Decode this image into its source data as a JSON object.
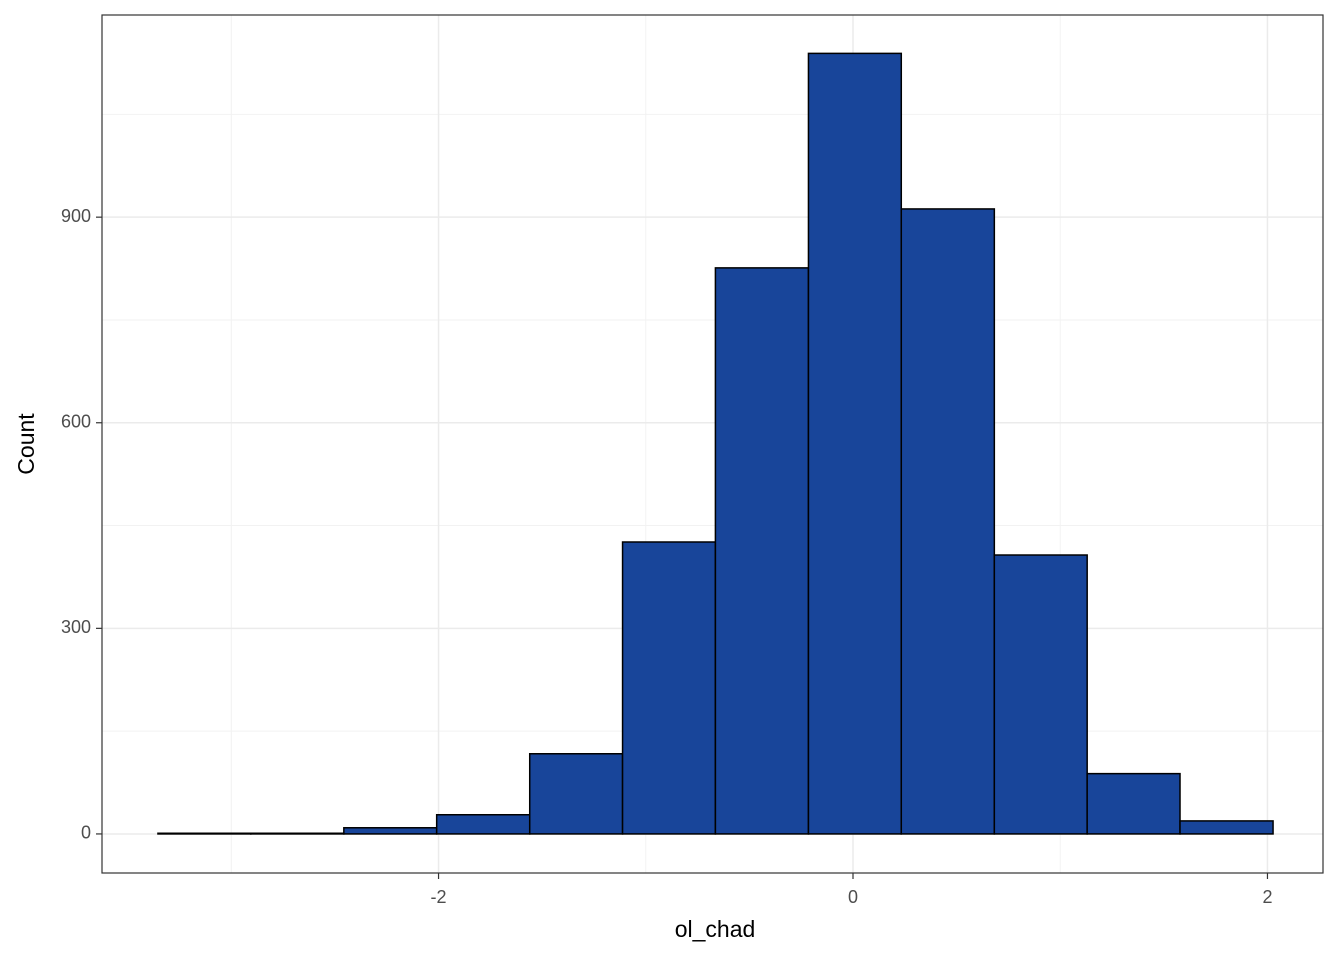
{
  "chart_data": {
    "type": "histogram",
    "x_label": "ol_chad",
    "y_label": "Count",
    "bins": [
      -3.354,
      -2.906,
      -2.457,
      -2.009,
      -1.56,
      -1.112,
      -0.664,
      -0.215,
      0.233,
      0.682,
      1.13,
      1.578,
      2.027
    ],
    "values": [
      1,
      1,
      9,
      28,
      117,
      426,
      826,
      1139,
      912,
      407,
      88,
      19
    ],
    "color": "#18459a",
    "xlim": [
      -3.624,
      2.268
    ],
    "xticks": [
      -2,
      0,
      2
    ],
    "x_minor_ticks": [
      -3,
      -1,
      1
    ],
    "ylim": [
      -57,
      1195
    ],
    "yticks": [
      0,
      300,
      600,
      900
    ],
    "y_minor_ticks": [
      150,
      450,
      750,
      1050
    ],
    "grid": true
  }
}
